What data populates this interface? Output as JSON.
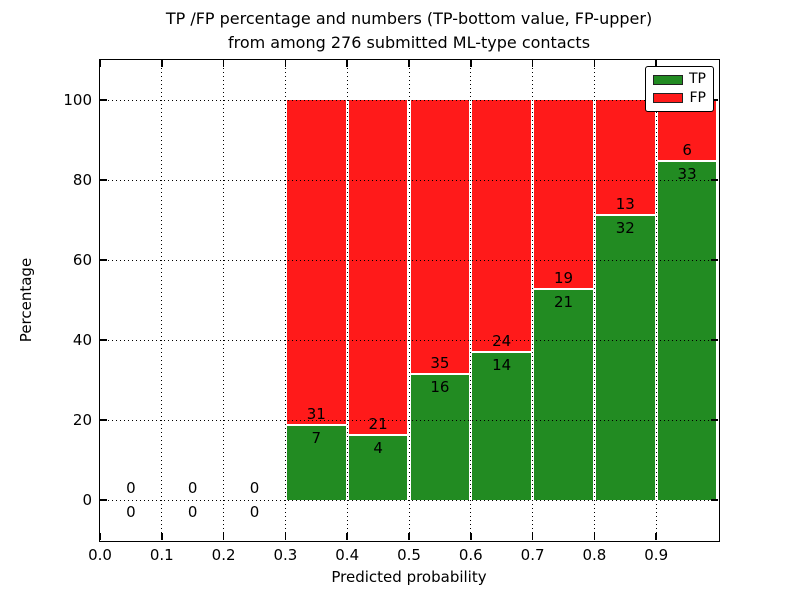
{
  "chart_data": {
    "type": "bar",
    "stacked": true,
    "title": "TP /FP percentage and numbers (TP-bottom value, FP-upper)",
    "subtitle": "from among 276 submitted ML-type contacts",
    "xlabel": "Predicted probability",
    "ylabel": "Percentage",
    "xlim": [
      0.0,
      1.0
    ],
    "ylim": [
      -10,
      110
    ],
    "x_ticks": [
      "0.0",
      "0.1",
      "0.2",
      "0.3",
      "0.4",
      "0.5",
      "0.6",
      "0.7",
      "0.8",
      "0.9"
    ],
    "y_ticks": [
      "0",
      "20",
      "40",
      "60",
      "80",
      "100"
    ],
    "grid": true,
    "grid_style": "dotted",
    "colors": {
      "tp": "#228b22",
      "fp": "#ff1a1a",
      "bar_edge": "#ffffff"
    },
    "legend": {
      "position": "upper right",
      "entries": [
        {
          "label": "TP",
          "color": "#228b22"
        },
        {
          "label": "FP",
          "color": "#ff1a1a"
        }
      ]
    },
    "bins": [
      {
        "x_start": 0.0,
        "tp": 0,
        "fp": 0,
        "tp_pct": 0
      },
      {
        "x_start": 0.1,
        "tp": 0,
        "fp": 0,
        "tp_pct": 0
      },
      {
        "x_start": 0.2,
        "tp": 0,
        "fp": 0,
        "tp_pct": 0
      },
      {
        "x_start": 0.3,
        "tp": 7,
        "fp": 31,
        "tp_pct": 18.42
      },
      {
        "x_start": 0.4,
        "tp": 4,
        "fp": 21,
        "tp_pct": 16.0
      },
      {
        "x_start": 0.5,
        "tp": 16,
        "fp": 35,
        "tp_pct": 31.37
      },
      {
        "x_start": 0.6,
        "tp": 14,
        "fp": 24,
        "tp_pct": 36.84
      },
      {
        "x_start": 0.7,
        "tp": 21,
        "fp": 19,
        "tp_pct": 52.5
      },
      {
        "x_start": 0.8,
        "tp": 32,
        "fp": 13,
        "tp_pct": 71.11
      },
      {
        "x_start": 0.9,
        "tp": 33,
        "fp": 6,
        "tp_pct": 84.62
      }
    ],
    "total_contacts": 276
  }
}
